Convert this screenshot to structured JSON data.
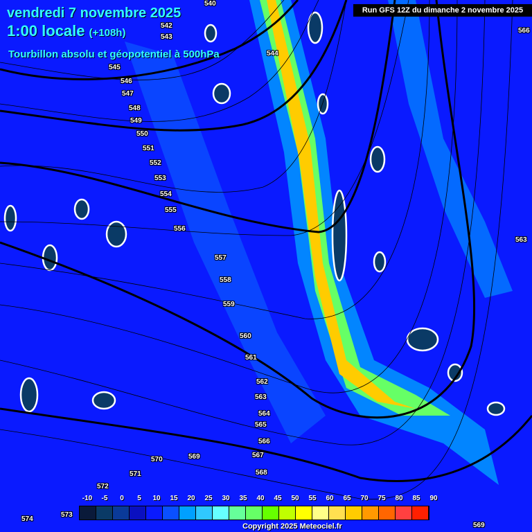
{
  "header": {
    "date": "vendredi 7 novembre 2025",
    "time": "1:00 locale",
    "lead": "(+108h)",
    "field": "Tourbillon absolu et géopotentiel à 500hPa",
    "run": "Run GFS 12Z du dimanche 2 novembre 2025"
  },
  "contour_labels": [
    "540",
    "542",
    "543",
    "544",
    "545",
    "546",
    "547",
    "548",
    "549",
    "550",
    "551",
    "552",
    "553",
    "554",
    "555",
    "556",
    "557",
    "558",
    "559",
    "560",
    "561",
    "562",
    "563",
    "564",
    "565",
    "566",
    "567",
    "568",
    "569",
    "570",
    "571",
    "572",
    "573",
    "574",
    "566",
    "563",
    "569"
  ],
  "colorbar": {
    "labels": [
      "-10",
      "-5",
      "0",
      "5",
      "10",
      "15",
      "20",
      "25",
      "30",
      "35",
      "40",
      "45",
      "50",
      "55",
      "60",
      "65",
      "70",
      "75",
      "80",
      "85",
      "90"
    ],
    "colors": [
      "#0a1a3a",
      "#0a3a66",
      "#0a3a99",
      "#0a10c0",
      "#0a1aff",
      "#0a50ff",
      "#00a0ff",
      "#30c8ff",
      "#66ffff",
      "#66ff99",
      "#66ff66",
      "#66ff00",
      "#c0ff00",
      "#ffff00",
      "#ffff88",
      "#ffe050",
      "#ffcc00",
      "#ff9900",
      "#ff6600",
      "#ff4040",
      "#ff2000"
    ]
  },
  "copyright": "Copyright 2025 Meteociel.fr"
}
